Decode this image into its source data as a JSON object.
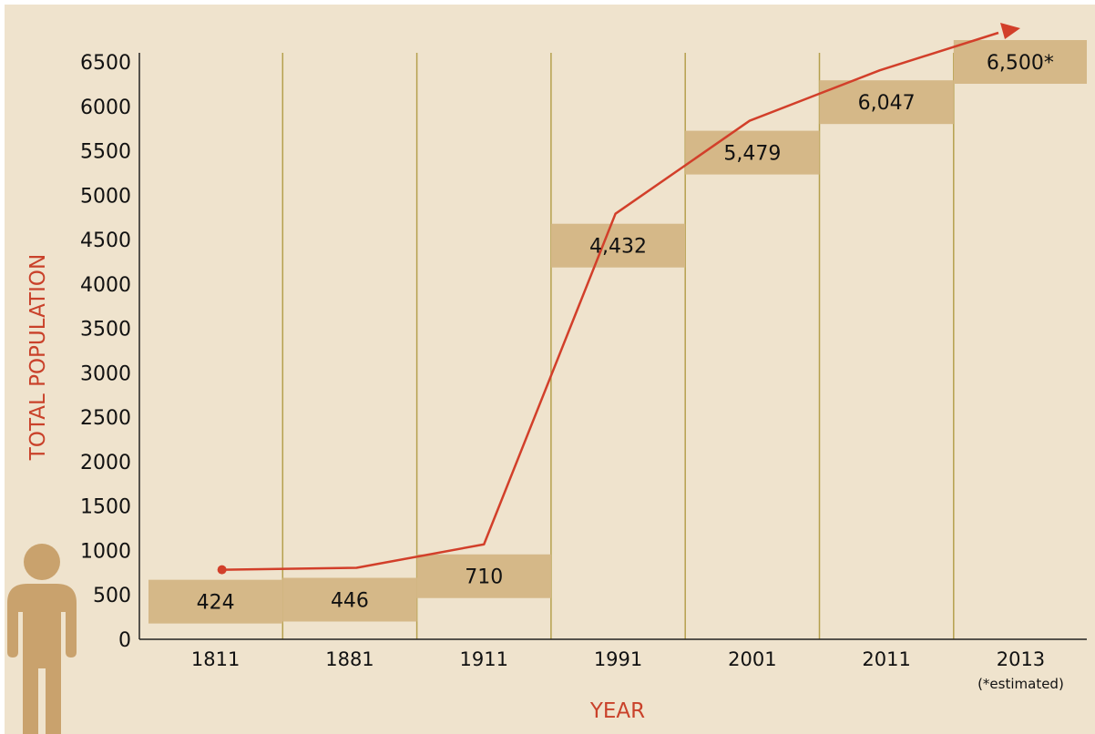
{
  "chart_data": {
    "type": "line",
    "title": "",
    "xlabel": "YEAR",
    "ylabel": "TOTAL POPULATION",
    "categories": [
      "1811",
      "1881",
      "1911",
      "1991",
      "2001",
      "2011",
      "2013"
    ],
    "category_notes": [
      "",
      "",
      "",
      "",
      "",
      "",
      "(*estimated)"
    ],
    "series": [
      {
        "values": [
          424,
          446,
          710,
          4432,
          5479,
          6047,
          6500
        ]
      }
    ],
    "value_labels": [
      "424",
      "446",
      "710",
      "4,432",
      "5,479",
      "6,047",
      "6,500*"
    ],
    "ylim": [
      0,
      6500
    ],
    "yticks": [
      0,
      500,
      1000,
      1500,
      2000,
      2500,
      3000,
      3500,
      4000,
      4500,
      5000,
      5500,
      6000,
      6500
    ],
    "grid": "vertical",
    "legend": "none",
    "colors": {
      "background": "#efe3cd",
      "band": "#d5b888",
      "line": "#d23f2a",
      "gridline": "#b5a04d",
      "axis_title": "#c9412a",
      "person_icon": "#c9a26d"
    },
    "icon": "person-icon"
  }
}
